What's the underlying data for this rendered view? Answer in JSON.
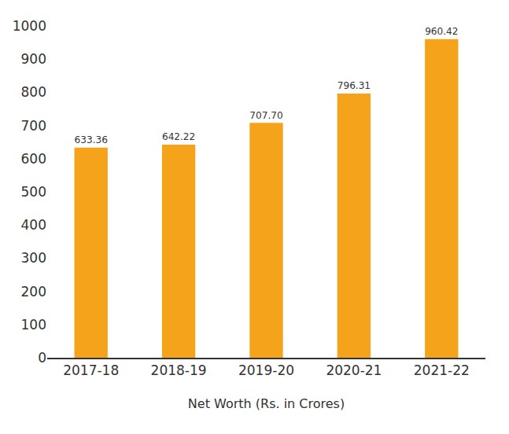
{
  "chart_data": {
    "type": "bar",
    "x_label": "Net Worth (Rs. in Crores)",
    "categories": [
      "2017-18",
      "2018-19",
      "2019-20",
      "2020-21",
      "2021-22"
    ],
    "values": [
      633.36,
      642.22,
      707.7,
      796.31,
      960.42
    ],
    "value_labels": [
      "633.36",
      "642.22",
      "707.70",
      "796.31",
      "960.42"
    ],
    "color": "#f5a31a",
    "ylim": [
      0,
      1000
    ],
    "yticks": [
      0,
      100,
      200,
      300,
      400,
      500,
      600,
      700,
      800,
      900,
      1000
    ],
    "grid": false,
    "data_labels": true
  }
}
